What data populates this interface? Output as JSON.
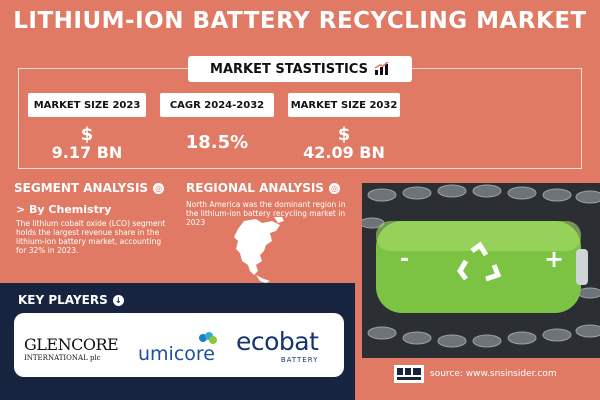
{
  "title": "LITHIUM-ION BATTERY RECYCLING MARKET",
  "market_stats": {
    "heading": "MARKET STASTISTICS",
    "items": [
      {
        "label": "MARKET SIZE 2023",
        "symbol": "$",
        "value": "9.17 BN"
      },
      {
        "label": "CAGR 2024-2032",
        "symbol": "",
        "value": "18.5%"
      },
      {
        "label": "MARKET SIZE 2032",
        "symbol": "$",
        "value": "42.09 BN"
      }
    ]
  },
  "segment": {
    "heading": "SEGMENT ANALYSIS",
    "subheading": "> By Chemistry",
    "text": "The lithium cobalt oxide (LCO) segment holds the largest revenue share in the lithium-ion battery market, accounting for 32% in 2023."
  },
  "regional": {
    "heading": "REGIONAL ANALYSIS",
    "text": "North America was the dominant region in the lithium-ion battery recycling market in 2023"
  },
  "key_players": {
    "heading": "KEY PLAYERS",
    "logos": {
      "glencore": "GLENCORE",
      "glencore_sub": "INTERNATIONAL plc",
      "umicore": "umicore",
      "ecobat": "ecobat",
      "ecobat_sub": "BATTERY"
    }
  },
  "battery": {
    "minus": "-",
    "plus": "+"
  },
  "source": "source: www.snsinsider.com",
  "colors": {
    "background": "#e07a64",
    "navy": "#16243f",
    "green": "#7cc243"
  }
}
